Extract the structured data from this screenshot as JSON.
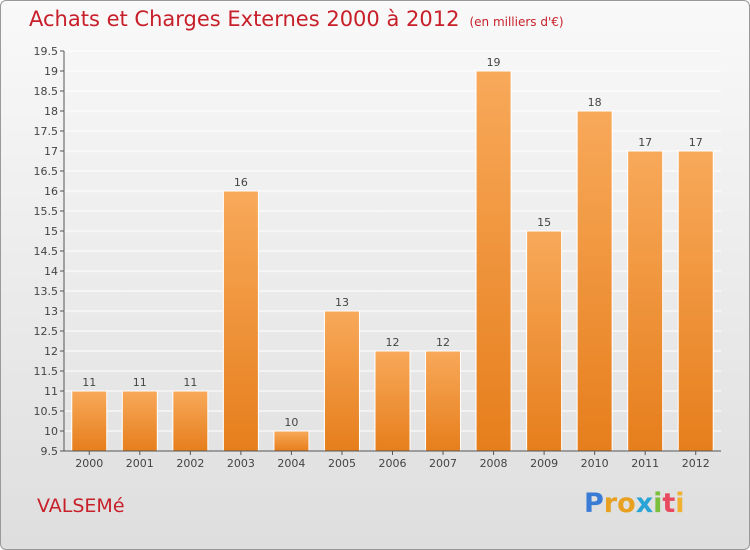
{
  "title": "Achats et Charges Externes 2000 à 2012",
  "subtitle": "(en milliers d'€)",
  "commune": "VALSEMé",
  "logo": {
    "letters": [
      "P",
      "r",
      "o",
      "x",
      "i",
      "t",
      "i"
    ],
    "colors": [
      "#3a7bd5",
      "#e8a020",
      "#e8a020",
      "#2aa3d6",
      "#7bbf3a",
      "#e84a5f",
      "#f0b030"
    ]
  },
  "colors": {
    "bar": "#f0953a",
    "title": "#c8202a",
    "grid": "#ffffff"
  },
  "chart_data": {
    "type": "bar",
    "categories": [
      "2000",
      "2001",
      "2002",
      "2003",
      "2004",
      "2005",
      "2006",
      "2007",
      "2008",
      "2009",
      "2010",
      "2011",
      "2012"
    ],
    "values": [
      11,
      11,
      11,
      16,
      10,
      13,
      12,
      12,
      19,
      15,
      18,
      17,
      17
    ],
    "data_labels": [
      "11",
      "11",
      "11",
      "16",
      "10",
      "13",
      "12",
      "12",
      "19",
      "15",
      "18",
      "17",
      "17"
    ],
    "ylim": [
      9.5,
      19.5
    ],
    "yticks": [
      "9.5",
      "10",
      "10.5",
      "11",
      "11.5",
      "12",
      "12.5",
      "13",
      "13.5",
      "14",
      "14.5",
      "15",
      "15.5",
      "16",
      "16.5",
      "17",
      "17.5",
      "18",
      "18.5",
      "19",
      "19.5"
    ],
    "title": "Achats et Charges Externes 2000 à 2012",
    "xlabel": "",
    "ylabel": "",
    "grid": true
  }
}
